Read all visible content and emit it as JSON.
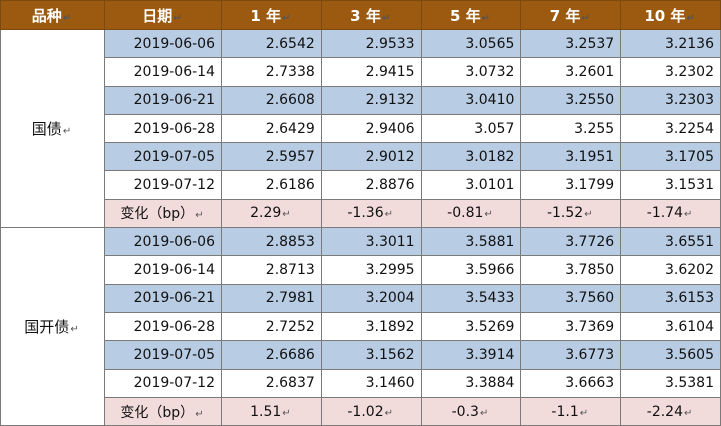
{
  "header": {
    "variety": "品种",
    "date": "日期",
    "y1": "1 年",
    "y3": "3 年",
    "y5": "5 年",
    "y7": "7 年",
    "y10": "10 年"
  },
  "groups": [
    {
      "name": "国债",
      "rows": [
        {
          "date": "2019-06-06",
          "v": [
            "2.6542",
            "2.9533",
            "3.0565",
            "3.2537",
            "3.2136"
          ]
        },
        {
          "date": "2019-06-14",
          "v": [
            "2.7338",
            "2.9415",
            "3.0732",
            "3.2601",
            "3.2302"
          ]
        },
        {
          "date": "2019-06-21",
          "v": [
            "2.6608",
            "2.9132",
            "3.0410",
            "3.2550",
            "3.2303"
          ]
        },
        {
          "date": "2019-06-28",
          "v": [
            "2.6429",
            "2.9406",
            "3.057",
            "3.255",
            "3.2254"
          ]
        },
        {
          "date": "2019-07-05",
          "v": [
            "2.5957",
            "2.9012",
            "3.0182",
            "3.1951",
            "3.1705"
          ]
        },
        {
          "date": "2019-07-12",
          "v": [
            "2.6186",
            "2.8876",
            "3.0101",
            "3.1799",
            "3.1531"
          ]
        }
      ],
      "change": {
        "label": "变化（bp）",
        "v": [
          "2.29",
          "-1.36",
          "-0.81",
          "-1.52",
          "-1.74"
        ]
      }
    },
    {
      "name": "国开债",
      "rows": [
        {
          "date": "2019-06-06",
          "v": [
            "2.8853",
            "3.3011",
            "3.5881",
            "3.7726",
            "3.6551"
          ]
        },
        {
          "date": "2019-06-14",
          "v": [
            "2.8713",
            "3.2995",
            "3.5966",
            "3.7850",
            "3.6202"
          ]
        },
        {
          "date": "2019-06-21",
          "v": [
            "2.7981",
            "3.2004",
            "3.5433",
            "3.7560",
            "3.6153"
          ]
        },
        {
          "date": "2019-06-28",
          "v": [
            "2.7252",
            "3.1892",
            "3.5269",
            "3.7369",
            "3.6104"
          ]
        },
        {
          "date": "2019-07-05",
          "v": [
            "2.6686",
            "3.1562",
            "3.3914",
            "3.6773",
            "3.5605"
          ]
        },
        {
          "date": "2019-07-12",
          "v": [
            "2.6837",
            "3.1460",
            "3.3884",
            "3.6663",
            "3.5381"
          ]
        }
      ],
      "change": {
        "label": "变化（bp）",
        "v": [
          "1.51",
          "-1.02",
          "-0.3",
          "-1.1",
          "-2.24"
        ]
      }
    }
  ]
}
